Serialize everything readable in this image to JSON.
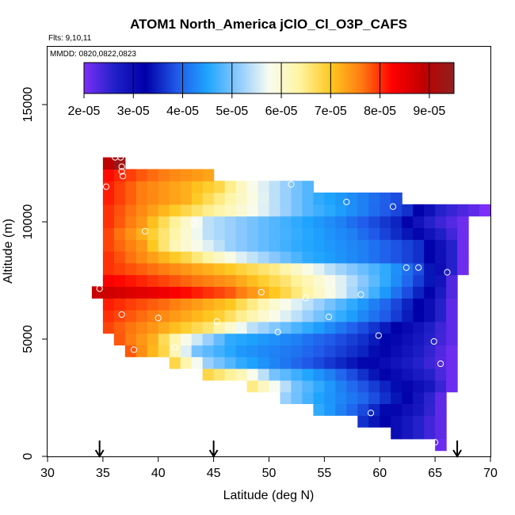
{
  "chart_data": {
    "type": "heatmap",
    "title": "ATOM1 North_America jClO_Cl_O3P_CAFS",
    "flights_label": "Flts: 9,10,11",
    "dates_label": "MMDD: 0820,0822,0823",
    "xlabel": "Latitude (deg N)",
    "ylabel": "Altitude (m)",
    "xlim": [
      30,
      70
    ],
    "ylim": [
      0,
      17500
    ],
    "xticks": [
      "30",
      "35",
      "40",
      "45",
      "50",
      "55",
      "60",
      "65",
      "70"
    ],
    "yticks": [
      "0",
      "5000",
      "10000",
      "15000"
    ],
    "colorbar": {
      "min": 2e-05,
      "max": 9.5e-05,
      "tick_values": [
        2e-05,
        3e-05,
        4e-05,
        5e-05,
        6e-05,
        7e-05,
        8e-05,
        9e-05
      ],
      "tick_labels": [
        "2e-05",
        "3e-05",
        "4e-05",
        "5e-05",
        "6e-05",
        "7e-05",
        "8e-05",
        "9e-05"
      ],
      "colors": [
        "#7b2ff7",
        "#2020c8",
        "#0000a8",
        "#2058e8",
        "#1ea4ff",
        "#8ccaff",
        "#f8fcf0",
        "#fff4a0",
        "#ffc820",
        "#ff7a10",
        "#ff0000",
        "#c00000",
        "#902020"
      ]
    },
    "cell_width_deg": 1,
    "cell_height_m": 500,
    "row_ranges": [
      {
        "alt": 500,
        "lat_min": 65,
        "lat_max": 66
      },
      {
        "alt": 1000,
        "lat_min": 61,
        "lat_max": 66
      },
      {
        "alt": 1500,
        "lat_min": 58,
        "lat_max": 66
      },
      {
        "alt": 2000,
        "lat_min": 54,
        "lat_max": 66
      },
      {
        "alt": 2500,
        "lat_min": 51,
        "lat_max": 66
      },
      {
        "alt": 3000,
        "lat_min": 48,
        "lat_max": 67
      },
      {
        "alt": 3500,
        "lat_min": 44,
        "lat_max": 67
      },
      {
        "alt": 4000,
        "lat_min": 41,
        "lat_max": 67
      },
      {
        "alt": 4500,
        "lat_min": 37,
        "lat_max": 67
      },
      {
        "alt": 5000,
        "lat_min": 36,
        "lat_max": 67
      },
      {
        "alt": 5500,
        "lat_min": 35,
        "lat_max": 67
      },
      {
        "alt": 6000,
        "lat_min": 35,
        "lat_max": 67
      },
      {
        "alt": 6500,
        "lat_min": 35,
        "lat_max": 67
      },
      {
        "alt": 7000,
        "lat_min": 34,
        "lat_max": 67
      },
      {
        "alt": 7500,
        "lat_min": 35,
        "lat_max": 67
      },
      {
        "alt": 8000,
        "lat_min": 35,
        "lat_max": 68
      },
      {
        "alt": 8500,
        "lat_min": 35,
        "lat_max": 68
      },
      {
        "alt": 9000,
        "lat_min": 35,
        "lat_max": 68
      },
      {
        "alt": 9500,
        "lat_min": 35,
        "lat_max": 68
      },
      {
        "alt": 10000,
        "lat_min": 35,
        "lat_max": 68
      },
      {
        "alt": 10500,
        "lat_min": 35,
        "lat_max": 70
      },
      {
        "alt": 11000,
        "lat_min": 35,
        "lat_max": 62
      },
      {
        "alt": 11500,
        "lat_min": 35,
        "lat_max": 54
      },
      {
        "alt": 12000,
        "lat_min": 35,
        "lat_max": 45
      },
      {
        "alt": 12500,
        "lat_min": 35,
        "lat_max": 37
      }
    ],
    "field_anchors": [
      {
        "alt": 500,
        "lats": [
          65
        ],
        "vals": [
          2.1e-05
        ]
      },
      {
        "alt": 1000,
        "lats": [
          61,
          63,
          65
        ],
        "vals": [
          3e-05,
          2.6e-05,
          2.2e-05
        ]
      },
      {
        "alt": 1500,
        "lats": [
          58,
          60,
          62,
          65
        ],
        "vals": [
          3.6e-05,
          3.2e-05,
          2.8e-05,
          2.2e-05
        ]
      },
      {
        "alt": 2000,
        "lats": [
          54,
          57,
          60,
          63,
          65
        ],
        "vals": [
          4.6e-05,
          4e-05,
          3.3e-05,
          2.8e-05,
          2.2e-05
        ]
      },
      {
        "alt": 2500,
        "lats": [
          51,
          54,
          58,
          62,
          65
        ],
        "vals": [
          5.2e-05,
          4.5e-05,
          4e-05,
          3.2e-05,
          2.2e-05
        ]
      },
      {
        "alt": 3000,
        "lats": [
          48,
          52,
          56,
          60,
          64,
          66
        ],
        "vals": [
          6.5e-05,
          5e-05,
          4.2e-05,
          3.5e-05,
          2.8e-05,
          2.1e-05
        ]
      },
      {
        "alt": 3500,
        "lats": [
          44,
          47,
          50,
          55,
          60,
          64,
          66
        ],
        "vals": [
          6.8e-05,
          6.2e-05,
          5e-05,
          4.2e-05,
          3.2e-05,
          2.6e-05,
          2.1e-05
        ]
      },
      {
        "alt": 4000,
        "lats": [
          41,
          44,
          47,
          52,
          58,
          63,
          66
        ],
        "vals": [
          6.8e-05,
          5.2e-05,
          4.6e-05,
          4e-05,
          3.3e-05,
          2.6e-05,
          2.1e-05
        ]
      },
      {
        "alt": 4500,
        "lats": [
          37,
          40,
          43,
          47,
          52,
          58,
          63,
          66
        ],
        "vals": [
          7.8e-05,
          6.8e-05,
          5e-05,
          4.4e-05,
          4.1e-05,
          3.5e-05,
          2.7e-05,
          2.1e-05
        ]
      },
      {
        "alt": 5000,
        "lats": [
          36,
          39,
          42,
          46,
          52,
          58,
          63,
          66
        ],
        "vals": [
          7.8e-05,
          7.2e-05,
          5.8e-05,
          4.6e-05,
          4.2e-05,
          3.6e-05,
          2.8e-05,
          2.2e-05
        ]
      },
      {
        "alt": 5500,
        "lats": [
          35,
          39,
          44,
          48,
          53,
          58,
          63,
          66
        ],
        "vals": [
          7.9e-05,
          7.4e-05,
          6.6e-05,
          5.4e-05,
          4.6e-05,
          3.8e-05,
          2.9e-05,
          2.2e-05
        ]
      },
      {
        "alt": 6000,
        "lats": [
          35,
          40,
          45,
          50,
          55,
          60,
          64,
          66
        ],
        "vals": [
          8e-05,
          7.5e-05,
          6.9e-05,
          5.8e-05,
          4.8e-05,
          3.9e-05,
          3e-05,
          2.2e-05
        ]
      },
      {
        "alt": 6500,
        "lats": [
          35,
          40,
          46,
          50,
          55,
          60,
          64,
          66
        ],
        "vals": [
          8.1e-05,
          7.7e-05,
          7e-05,
          6e-05,
          5e-05,
          4e-05,
          3e-05,
          2.2e-05
        ]
      },
      {
        "alt": 7000,
        "lats": [
          34,
          40,
          46,
          51,
          56,
          60,
          64,
          66
        ],
        "vals": [
          8.8e-05,
          8.4e-05,
          7.8e-05,
          6.8e-05,
          5.6e-05,
          4.4e-05,
          3.2e-05,
          2.3e-05
        ]
      },
      {
        "alt": 7500,
        "lats": [
          35,
          40,
          46,
          51,
          56,
          60,
          64,
          66
        ],
        "vals": [
          8.3e-05,
          7.9e-05,
          7.4e-05,
          6.6e-05,
          5.6e-05,
          4.6e-05,
          3.4e-05,
          2.3e-05
        ]
      },
      {
        "alt": 8000,
        "lats": [
          35,
          40,
          45,
          50,
          55,
          60,
          63,
          66,
          67
        ],
        "vals": [
          8e-05,
          7.6e-05,
          7.1e-05,
          6.5e-05,
          5.4e-05,
          4.6e-05,
          3.8e-05,
          2.6e-05,
          2.1e-05
        ]
      },
      {
        "alt": 8500,
        "lats": [
          35,
          38,
          42,
          47,
          53,
          58,
          63,
          66,
          67
        ],
        "vals": [
          8e-05,
          7.5e-05,
          6.8e-05,
          5.6e-05,
          4.6e-05,
          4.2e-05,
          3.6e-05,
          2.6e-05,
          2.1e-05
        ]
      },
      {
        "alt": 9000,
        "lats": [
          35,
          38,
          41,
          46,
          52,
          58,
          63,
          66,
          67
        ],
        "vals": [
          7.9e-05,
          7.4e-05,
          6.2e-05,
          5.2e-05,
          4.6e-05,
          4.2e-05,
          3.6e-05,
          2.6e-05,
          2.1e-05
        ]
      },
      {
        "alt": 9500,
        "lats": [
          35,
          38,
          40,
          44,
          50,
          57,
          62,
          66,
          67
        ],
        "vals": [
          7.9e-05,
          7.2e-05,
          6.6e-05,
          5.4e-05,
          4.8e-05,
          4.2e-05,
          3.4e-05,
          2.4e-05,
          2.1e-05
        ]
      },
      {
        "alt": 10000,
        "lats": [
          35,
          38,
          41,
          44,
          50,
          56,
          61,
          64,
          67
        ],
        "vals": [
          8e-05,
          7.4e-05,
          6.4e-05,
          5.4e-05,
          4.8e-05,
          4.2e-05,
          3.5e-05,
          2.6e-05,
          2.1e-05
        ]
      },
      {
        "alt": 10500,
        "lats": [
          35,
          38,
          42,
          48,
          53,
          58,
          62,
          65,
          68,
          69
        ],
        "vals": [
          8e-05,
          7.5e-05,
          6.8e-05,
          5.8e-05,
          4.8e-05,
          4.2e-05,
          3.6e-05,
          2.6e-05,
          2.2e-05,
          2e-05
        ]
      },
      {
        "alt": 11000,
        "lats": [
          35,
          38,
          42,
          46,
          50,
          54,
          58,
          61
        ],
        "vals": [
          8.1e-05,
          7.6e-05,
          7.2e-05,
          6.3e-05,
          5.4e-05,
          4.6e-05,
          4.2e-05,
          3.8e-05
        ]
      },
      {
        "alt": 11500,
        "lats": [
          35,
          38,
          42,
          45,
          48,
          51,
          53
        ],
        "vals": [
          8.1e-05,
          7.6e-05,
          7.2e-05,
          6.8e-05,
          5.8e-05,
          5.2e-05,
          4.8e-05
        ]
      },
      {
        "alt": 12000,
        "lats": [
          35,
          38,
          41,
          44
        ],
        "vals": [
          8.2e-05,
          7.8e-05,
          7.5e-05,
          7.3e-05
        ]
      },
      {
        "alt": 12500,
        "lats": [
          35,
          36,
          37
        ],
        "vals": [
          8.9e-05,
          9.3e-05,
          8e-05
        ]
      }
    ],
    "flight_points": [
      {
        "lat": 36.1,
        "alt": 12750
      },
      {
        "lat": 36.6,
        "alt": 12750
      },
      {
        "lat": 36.7,
        "alt": 12350
      },
      {
        "lat": 36.7,
        "alt": 12150
      },
      {
        "lat": 36.8,
        "alt": 11950
      },
      {
        "lat": 35.3,
        "alt": 11500
      },
      {
        "lat": 52.0,
        "alt": 11600
      },
      {
        "lat": 57.0,
        "alt": 10850
      },
      {
        "lat": 61.2,
        "alt": 10650
      },
      {
        "lat": 69.8,
        "alt": 10900
      },
      {
        "lat": 43.2,
        "alt": 9950
      },
      {
        "lat": 38.8,
        "alt": 9600
      },
      {
        "lat": 62.4,
        "alt": 8050
      },
      {
        "lat": 63.5,
        "alt": 8050
      },
      {
        "lat": 66.1,
        "alt": 7850
      },
      {
        "lat": 34.7,
        "alt": 7150
      },
      {
        "lat": 49.3,
        "alt": 7000
      },
      {
        "lat": 58.3,
        "alt": 6900
      },
      {
        "lat": 53.3,
        "alt": 6750
      },
      {
        "lat": 36.7,
        "alt": 6050
      },
      {
        "lat": 40.0,
        "alt": 5900
      },
      {
        "lat": 55.4,
        "alt": 5950
      },
      {
        "lat": 45.3,
        "alt": 5750
      },
      {
        "lat": 50.8,
        "alt": 5300
      },
      {
        "lat": 59.9,
        "alt": 5150
      },
      {
        "lat": 64.9,
        "alt": 4900
      },
      {
        "lat": 41.5,
        "alt": 4650
      },
      {
        "lat": 37.8,
        "alt": 4550
      },
      {
        "lat": 65.5,
        "alt": 3950
      },
      {
        "lat": 59.2,
        "alt": 1850
      },
      {
        "lat": 65.0,
        "alt": 600
      }
    ],
    "arrow_lats": [
      34.7,
      45.0,
      67.0
    ]
  }
}
